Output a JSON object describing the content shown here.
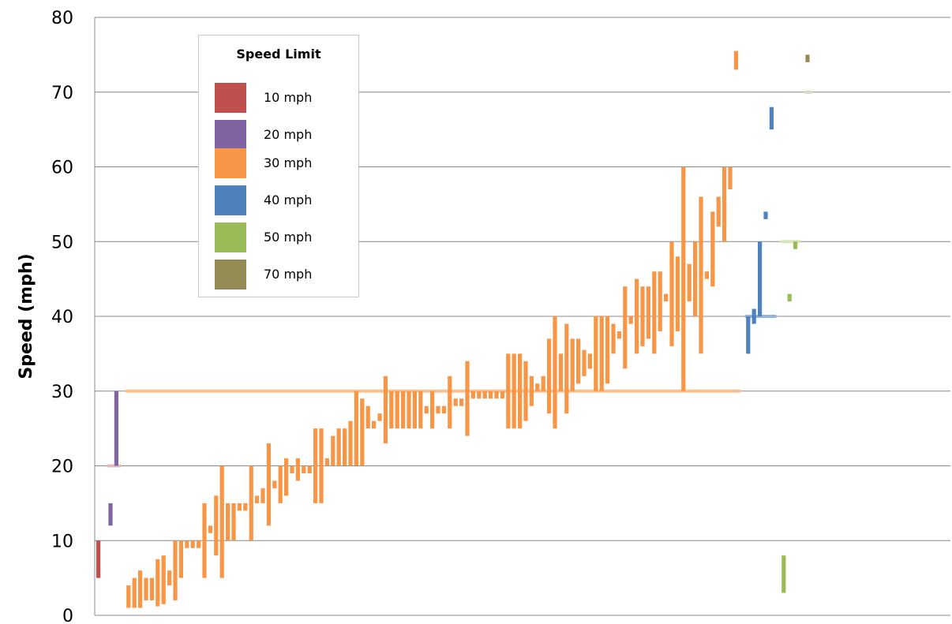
{
  "chart_data": {
    "type": "bar",
    "ylabel": "Speed (mph)",
    "ylim": [
      0,
      80
    ],
    "yticks": [
      "0",
      "10",
      "20",
      "30",
      "40",
      "50",
      "60",
      "70",
      "80"
    ],
    "grid": true,
    "legend": {
      "title": "Speed Limit",
      "placement": "top-left",
      "items": [
        {
          "label": "10 mph",
          "color": "#c0504d"
        },
        {
          "label": "20 mph",
          "color": "#8064a2"
        },
        {
          "label": "30 mph",
          "color": "#f79646"
        },
        {
          "label": "40 mph",
          "color": "#4f81bd"
        },
        {
          "label": "50 mph",
          "color": "#9bbb59"
        },
        {
          "label": "70 mph",
          "color": "#948a54"
        }
      ]
    },
    "speed_limit_lines": [
      {
        "limit": "20 mph",
        "y": 20,
        "color": "#e6b9b8"
      },
      {
        "limit": "30 mph",
        "y": 30,
        "color": "#fac090"
      },
      {
        "limit": "40 mph",
        "y": 40,
        "color": "#95b3d7"
      },
      {
        "limit": "50 mph",
        "y": 50,
        "color": "#d7e4bd"
      },
      {
        "limit": "70 mph",
        "y": 70,
        "color": "#ddd9c3"
      }
    ],
    "series": [
      {
        "name": "10 mph",
        "color": "#c0504d",
        "ranges": [
          [
            5,
            10
          ]
        ]
      },
      {
        "name": "20 mph",
        "color": "#8064a2",
        "ranges": [
          [
            12,
            15
          ],
          [
            20,
            30
          ]
        ]
      },
      {
        "name": "30 mph",
        "color": "#f79646",
        "ranges": [
          [
            1,
            4
          ],
          [
            1,
            5
          ],
          [
            1,
            6
          ],
          [
            2,
            5
          ],
          [
            2,
            5
          ],
          [
            1.2,
            7.5
          ],
          [
            1.5,
            8
          ],
          [
            4,
            6
          ],
          [
            2,
            10
          ],
          [
            5,
            10
          ],
          [
            9,
            10
          ],
          [
            9,
            10
          ],
          [
            9,
            10
          ],
          [
            5,
            15
          ],
          [
            11,
            12
          ],
          [
            8,
            16
          ],
          [
            5,
            20
          ],
          [
            10,
            15
          ],
          [
            10,
            15
          ],
          [
            14,
            15
          ],
          [
            14,
            15
          ],
          [
            10,
            20
          ],
          [
            15,
            16
          ],
          [
            15,
            17
          ],
          [
            12,
            23
          ],
          [
            17,
            18
          ],
          [
            15,
            20
          ],
          [
            16,
            21
          ],
          [
            19,
            20
          ],
          [
            18,
            21
          ],
          [
            19,
            20
          ],
          [
            19,
            20
          ],
          [
            15,
            25
          ],
          [
            15,
            25
          ],
          [
            20,
            21
          ],
          [
            20,
            24
          ],
          [
            20,
            25
          ],
          [
            20,
            25
          ],
          [
            20,
            26
          ],
          [
            20,
            30
          ],
          [
            20,
            29
          ],
          [
            25,
            28
          ],
          [
            25,
            26
          ],
          [
            26,
            27
          ],
          [
            23,
            32
          ],
          [
            25,
            30
          ],
          [
            25,
            30
          ],
          [
            25,
            30
          ],
          [
            25,
            30
          ],
          [
            25,
            30
          ],
          [
            25,
            30
          ],
          [
            27,
            28
          ],
          [
            25,
            30
          ],
          [
            27,
            28
          ],
          [
            27,
            28
          ],
          [
            25,
            32
          ],
          [
            28,
            29
          ],
          [
            28,
            29
          ],
          [
            24,
            34
          ],
          [
            29,
            30
          ],
          [
            29,
            30
          ],
          [
            29,
            30
          ],
          [
            29,
            30
          ],
          [
            29,
            30
          ],
          [
            29,
            30
          ],
          [
            25,
            35
          ],
          [
            25,
            35
          ],
          [
            25,
            35
          ],
          [
            26,
            34
          ],
          [
            28,
            32
          ],
          [
            30,
            31
          ],
          [
            30,
            32
          ],
          [
            27,
            37
          ],
          [
            25,
            40
          ],
          [
            30,
            35
          ],
          [
            27,
            39
          ],
          [
            30,
            37
          ],
          [
            31,
            37
          ],
          [
            32,
            35.5
          ],
          [
            33,
            35
          ],
          [
            30,
            40
          ],
          [
            30,
            40
          ],
          [
            31,
            40
          ],
          [
            35,
            39
          ],
          [
            37,
            38
          ],
          [
            33,
            44
          ],
          [
            39,
            40
          ],
          [
            35,
            45
          ],
          [
            36,
            44
          ],
          [
            37,
            44
          ],
          [
            35,
            46
          ],
          [
            38,
            46
          ],
          [
            42,
            43
          ],
          [
            36,
            50
          ],
          [
            38,
            48
          ],
          [
            30,
            60
          ],
          [
            42,
            47
          ],
          [
            40,
            50
          ],
          [
            35,
            56
          ],
          [
            45,
            46
          ],
          [
            44,
            54
          ],
          [
            52,
            56
          ],
          [
            50,
            60
          ],
          [
            57,
            60
          ],
          [
            73,
            75.5
          ]
        ]
      },
      {
        "name": "40 mph",
        "color": "#4f81bd",
        "ranges": [
          [
            35,
            40
          ],
          [
            39,
            41
          ],
          [
            40,
            50
          ],
          [
            53,
            54
          ],
          [
            65,
            68
          ]
        ]
      },
      {
        "name": "50 mph",
        "color": "#9bbb59",
        "ranges": [
          [
            3,
            8
          ],
          [
            42,
            43
          ],
          [
            49,
            50
          ]
        ]
      },
      {
        "name": "70 mph",
        "color": "#948a54",
        "ranges": [
          [
            74,
            75
          ]
        ]
      }
    ]
  }
}
